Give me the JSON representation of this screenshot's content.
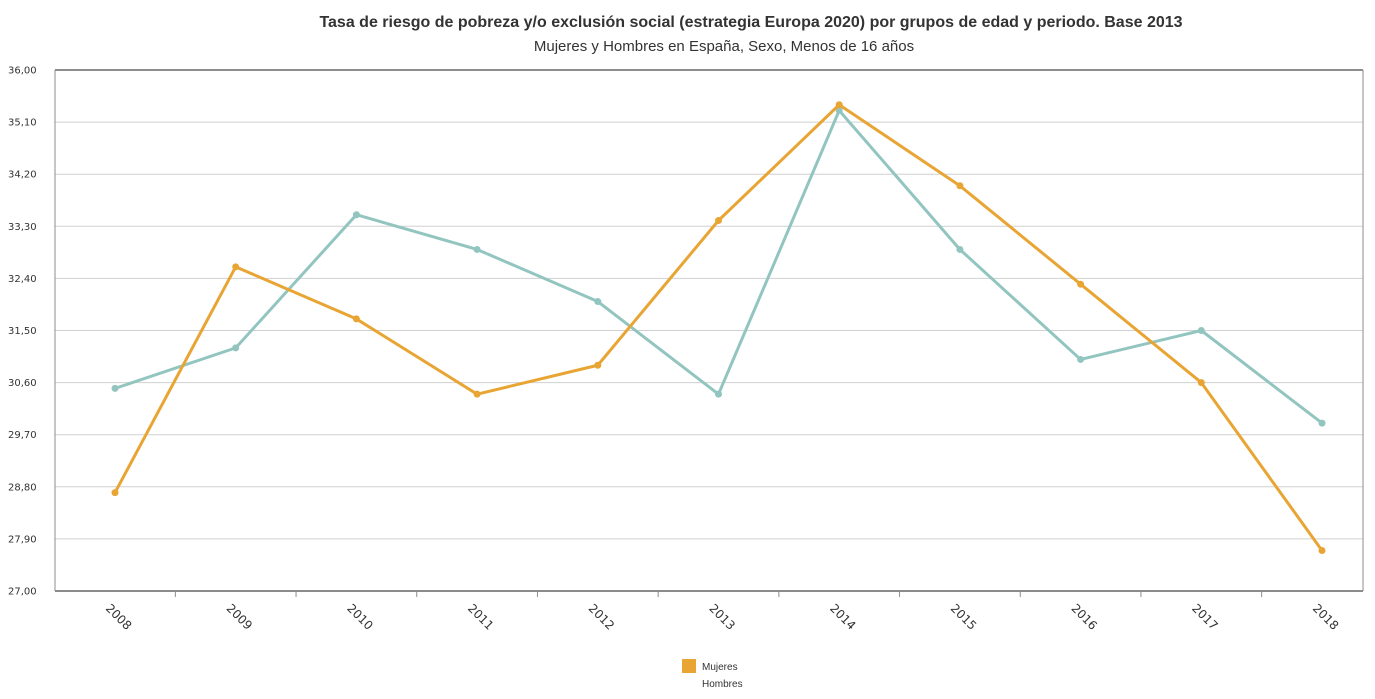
{
  "chart_data": {
    "type": "line",
    "title": "Tasa de riesgo de pobreza y/o exclusión social (estrategia Europa 2020) por grupos de edad y periodo. Base 2013",
    "subtitle": "Mujeres y Hombres en España, Sexo, Menos de 16 años",
    "x": [
      "2008",
      "2009",
      "2010",
      "2011",
      "2012",
      "2013",
      "2014",
      "2015",
      "2016",
      "2017",
      "2018"
    ],
    "y_ticks": [
      "27,00",
      "27,90",
      "28,80",
      "29,70",
      "30,60",
      "31,50",
      "32,40",
      "33,30",
      "34,20",
      "35,10",
      "36,00"
    ],
    "ylim": [
      27.0,
      36.0
    ],
    "grid": true,
    "legend_position": "bottom",
    "series": [
      {
        "name": "Mujeres",
        "color": "#E8A534",
        "values": [
          28.7,
          32.6,
          31.7,
          30.4,
          30.9,
          33.4,
          35.4,
          34.0,
          32.3,
          30.6,
          27.7
        ]
      },
      {
        "name": "Hombres",
        "color": "#93C5C0",
        "values": [
          30.5,
          31.2,
          33.5,
          32.9,
          32.0,
          30.4,
          35.3,
          32.9,
          31.0,
          31.5,
          29.9
        ]
      }
    ]
  }
}
